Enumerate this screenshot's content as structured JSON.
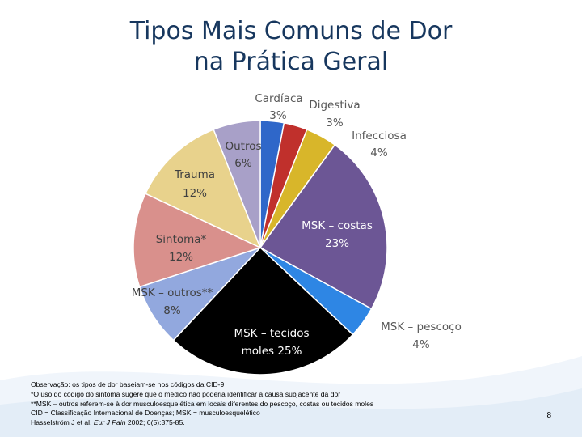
{
  "slide": {
    "title_line1": "Tipos Mais Comuns de Dor",
    "title_line2": "na Prática Geral",
    "page_number": "8"
  },
  "colors": {
    "title": "#17375e",
    "rule": "#b7cde3"
  },
  "chart_data": {
    "type": "pie",
    "title": "",
    "start_angle_deg": 0,
    "slices": [
      {
        "name": "Cardíaca",
        "value": 3,
        "label": "3%",
        "color": "#2f67c9"
      },
      {
        "name": "Digestiva",
        "value": 3,
        "label": "3%",
        "color": "#c0302c"
      },
      {
        "name": "Infecciosa",
        "value": 4,
        "label": "4%",
        "color": "#d8b62a"
      },
      {
        "name": "MSK – costas",
        "value": 23,
        "label": "23%",
        "color": "#6c5695"
      },
      {
        "name": "MSK – pescoço",
        "value": 4,
        "label": "4%",
        "color": "#2e86e4"
      },
      {
        "name": "MSK – tecidos moles",
        "value": 25,
        "label": "moles 25%",
        "color": "#000000"
      },
      {
        "name": "MSK – outros**",
        "value": 8,
        "label": "8%",
        "color": "#92a8de"
      },
      {
        "name": "Sintoma*",
        "value": 12,
        "label": "12%",
        "color": "#d9908c"
      },
      {
        "name": "Trauma",
        "value": 12,
        "label": "12%",
        "color": "#e8d28c"
      },
      {
        "name": "Outros",
        "value": 6,
        "label": "6%",
        "color": "#a8a0c8"
      }
    ]
  },
  "notes": {
    "line1": "Observação: os tipos de dor baseiam-se nos códigos da CID-9",
    "line2": "*O uso do código do sintoma sugere que o médico não poderia identificar a causa subjacente da dor",
    "line3": "**MSK – outros referem-se à dor musculoesquelética em locais diferentes do pescoço, costas ou tecidos moles",
    "line4": "CID = Classificação Internacional de Doenças; MSK = musculoesquelético",
    "citation_authors": "Hasselström J et al.",
    "citation_journal": "Eur J Pain",
    "citation_rest": "2002; 6(5):375-85."
  }
}
